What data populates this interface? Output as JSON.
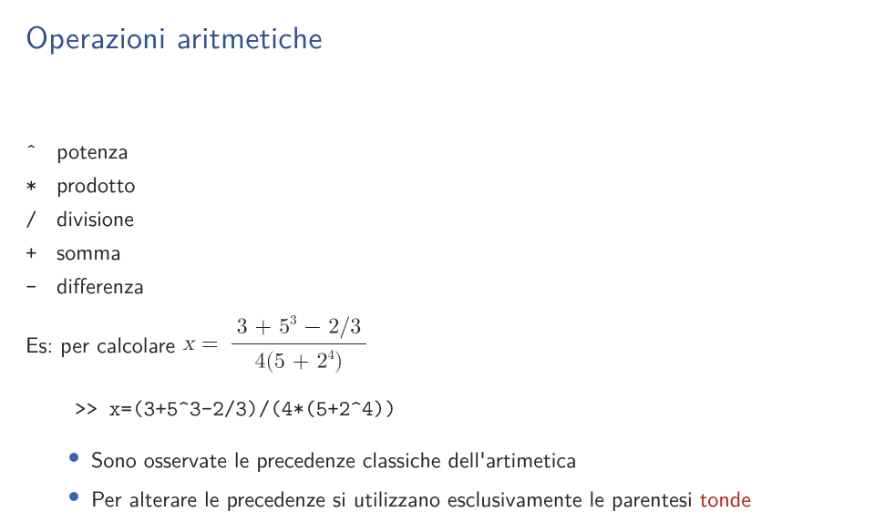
{
  "colors": {
    "title": "#2f5290",
    "text": "#262626",
    "bullet": "#3a66a9",
    "accent_red": "#b22217",
    "background": "#ffffff"
  },
  "fonts": {
    "title_size_pt": 26,
    "body_size_pt": 18,
    "code_size_pt": 18
  },
  "title": "Operazioni aritmetiche",
  "operators": [
    {
      "sym": "ˆ",
      "desc": "potenza"
    },
    {
      "sym": "*",
      "desc": "prodotto"
    },
    {
      "sym": "/",
      "desc": "divisione"
    },
    {
      "sym": "+",
      "desc": "somma"
    },
    {
      "sym": "-",
      "desc": "differenza"
    }
  ],
  "example": {
    "lead": "Es: per calcolare",
    "var": "x",
    "eq": "=",
    "num_a": "3 + 5",
    "num_exp": "3",
    "num_b": " − 2/3",
    "den_a": "4(5 + 2",
    "den_exp": "4",
    "den_b": ")"
  },
  "code": ">> x=(3+5^3-2/3)/(4*(5+2^4))",
  "bullets": [
    {
      "text": "Sono osservate le precedenze classiche dell'artimetica"
    },
    {
      "pre": "Per alterare le precedenze si utilizzano esclusivamente le parentesi ",
      "accent": "tonde"
    }
  ]
}
